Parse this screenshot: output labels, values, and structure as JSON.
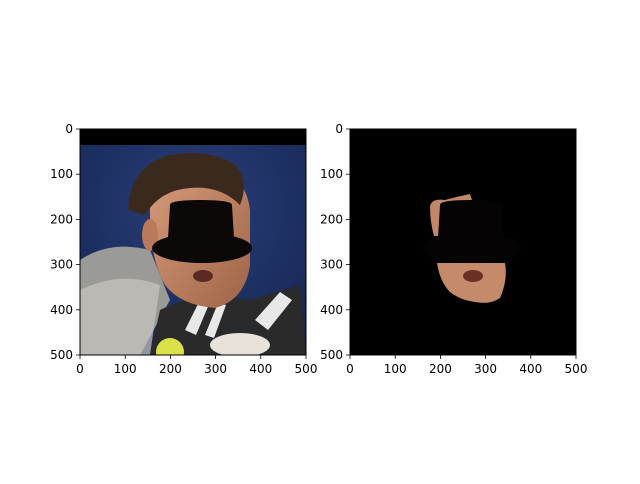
{
  "figure": {
    "panels": [
      {
        "name": "original-with-hat",
        "content": "photo",
        "xticks": [
          "0",
          "100",
          "200",
          "300",
          "400",
          "500"
        ],
        "yticks": [
          "0",
          "100",
          "200",
          "300",
          "400",
          "500"
        ],
        "xlim": [
          0,
          500
        ],
        "ylim": [
          500,
          0
        ]
      },
      {
        "name": "masked-skin",
        "content": "mask",
        "xticks": [
          "0",
          "100",
          "200",
          "300",
          "400",
          "500"
        ],
        "yticks": [
          "0",
          "100",
          "200",
          "300",
          "400",
          "500"
        ],
        "xlim": [
          0,
          500
        ],
        "ylim": [
          500,
          0
        ]
      }
    ],
    "colors": {
      "background_blue": "#1c2f62",
      "skin": "#c48a6a",
      "hair": "#3a2a1e",
      "hat": "#0d0808",
      "mask_background": "#000000"
    }
  }
}
